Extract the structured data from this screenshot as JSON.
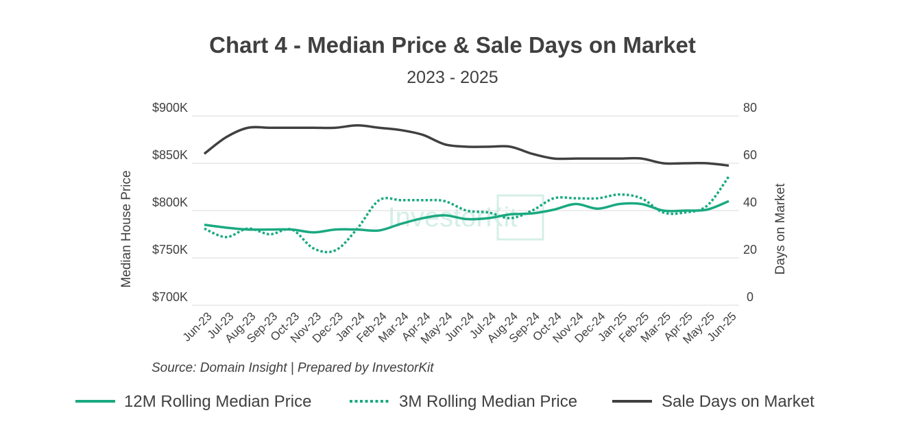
{
  "chart_data": {
    "type": "line",
    "title": "Chart 4 - Median Price & Sale Days on Market",
    "subtitle": "2023 - 2025",
    "source": "Source: Domain Insight | Prepared by InvestorKit",
    "watermark": "InvestorKit",
    "ylabel": "Median House Price",
    "y2label": "Days on Market",
    "ylim": [
      700,
      900
    ],
    "y2lim": [
      0,
      80
    ],
    "yticks": [
      "$700K",
      "$750K",
      "$800K",
      "$850K",
      "$900K"
    ],
    "y2ticks": [
      "0",
      "20",
      "40",
      "60",
      "80"
    ],
    "categories": [
      "Jun-23",
      "Jul-23",
      "Aug-23",
      "Sep-23",
      "Oct-23",
      "Nov-23",
      "Dec-23",
      "Jan-24",
      "Feb-24",
      "Mar-24",
      "Apr-24",
      "May-24",
      "Jun-24",
      "Jul-24",
      "Aug-24",
      "Sep-24",
      "Oct-24",
      "Nov-24",
      "Dec-24",
      "Jan-25",
      "Feb-25",
      "Mar-25",
      "Apr-25",
      "May-25",
      "Jun-25"
    ],
    "series": [
      {
        "name": "12M Rolling Median Price",
        "axis": "left",
        "color": "#1aa980",
        "style": "solid",
        "values": [
          785,
          782,
          780,
          780,
          780,
          777,
          780,
          780,
          779,
          786,
          792,
          795,
          791,
          792,
          796,
          797,
          801,
          807,
          802,
          807,
          807,
          800,
          800,
          801,
          810
        ]
      },
      {
        "name": "3M Rolling Median Price",
        "axis": "left",
        "color": "#1aa980",
        "style": "dotted",
        "values": [
          781,
          772,
          781,
          775,
          780,
          760,
          758,
          781,
          811,
          811,
          811,
          810,
          800,
          798,
          792,
          800,
          813,
          813,
          813,
          817,
          813,
          798,
          798,
          805,
          836
        ]
      },
      {
        "name": "Sale Days on Market",
        "axis": "right",
        "color": "#404040",
        "style": "solid",
        "values": [
          64,
          71,
          75,
          75,
          75,
          75,
          75,
          76,
          75,
          74,
          72,
          68,
          67,
          67,
          67,
          64,
          62,
          62,
          62,
          62,
          62,
          60,
          60,
          60,
          59
        ]
      }
    ]
  }
}
